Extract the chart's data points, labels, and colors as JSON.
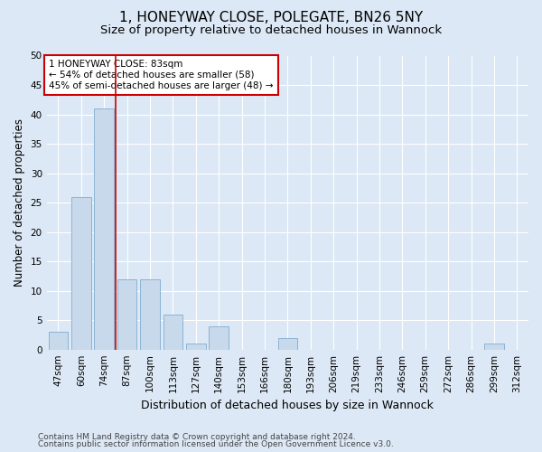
{
  "title_line1": "1, HONEYWAY CLOSE, POLEGATE, BN26 5NY",
  "title_line2": "Size of property relative to detached houses in Wannock",
  "xlabel": "Distribution of detached houses by size in Wannock",
  "ylabel": "Number of detached properties",
  "bar_labels": [
    "47sqm",
    "60sqm",
    "74sqm",
    "87sqm",
    "100sqm",
    "113sqm",
    "127sqm",
    "140sqm",
    "153sqm",
    "166sqm",
    "180sqm",
    "193sqm",
    "206sqm",
    "219sqm",
    "233sqm",
    "246sqm",
    "259sqm",
    "272sqm",
    "286sqm",
    "299sqm",
    "312sqm"
  ],
  "bar_values": [
    3,
    26,
    41,
    12,
    12,
    6,
    1,
    4,
    0,
    0,
    2,
    0,
    0,
    0,
    0,
    0,
    0,
    0,
    0,
    1,
    0
  ],
  "bar_color": "#c8d9ec",
  "bar_edgecolor": "#8ab4d4",
  "vline_x": 2.5,
  "vline_color": "#cc0000",
  "ylim": [
    0,
    50
  ],
  "yticks": [
    0,
    5,
    10,
    15,
    20,
    25,
    30,
    35,
    40,
    45,
    50
  ],
  "annotation_text": "1 HONEYWAY CLOSE: 83sqm\n← 54% of detached houses are smaller (58)\n45% of semi-detached houses are larger (48) →",
  "annotation_box_color": "#ffffff",
  "annotation_box_edgecolor": "#cc0000",
  "footer_line1": "Contains HM Land Registry data © Crown copyright and database right 2024.",
  "footer_line2": "Contains public sector information licensed under the Open Government Licence v3.0.",
  "bg_color": "#dce8f5",
  "fig_bg_color": "#dce8f5",
  "grid_color": "#ffffff",
  "title_fontsize": 11,
  "subtitle_fontsize": 9.5,
  "tick_fontsize": 7.5,
  "ylabel_fontsize": 8.5,
  "xlabel_fontsize": 9,
  "annotation_fontsize": 7.5,
  "footer_fontsize": 6.5
}
